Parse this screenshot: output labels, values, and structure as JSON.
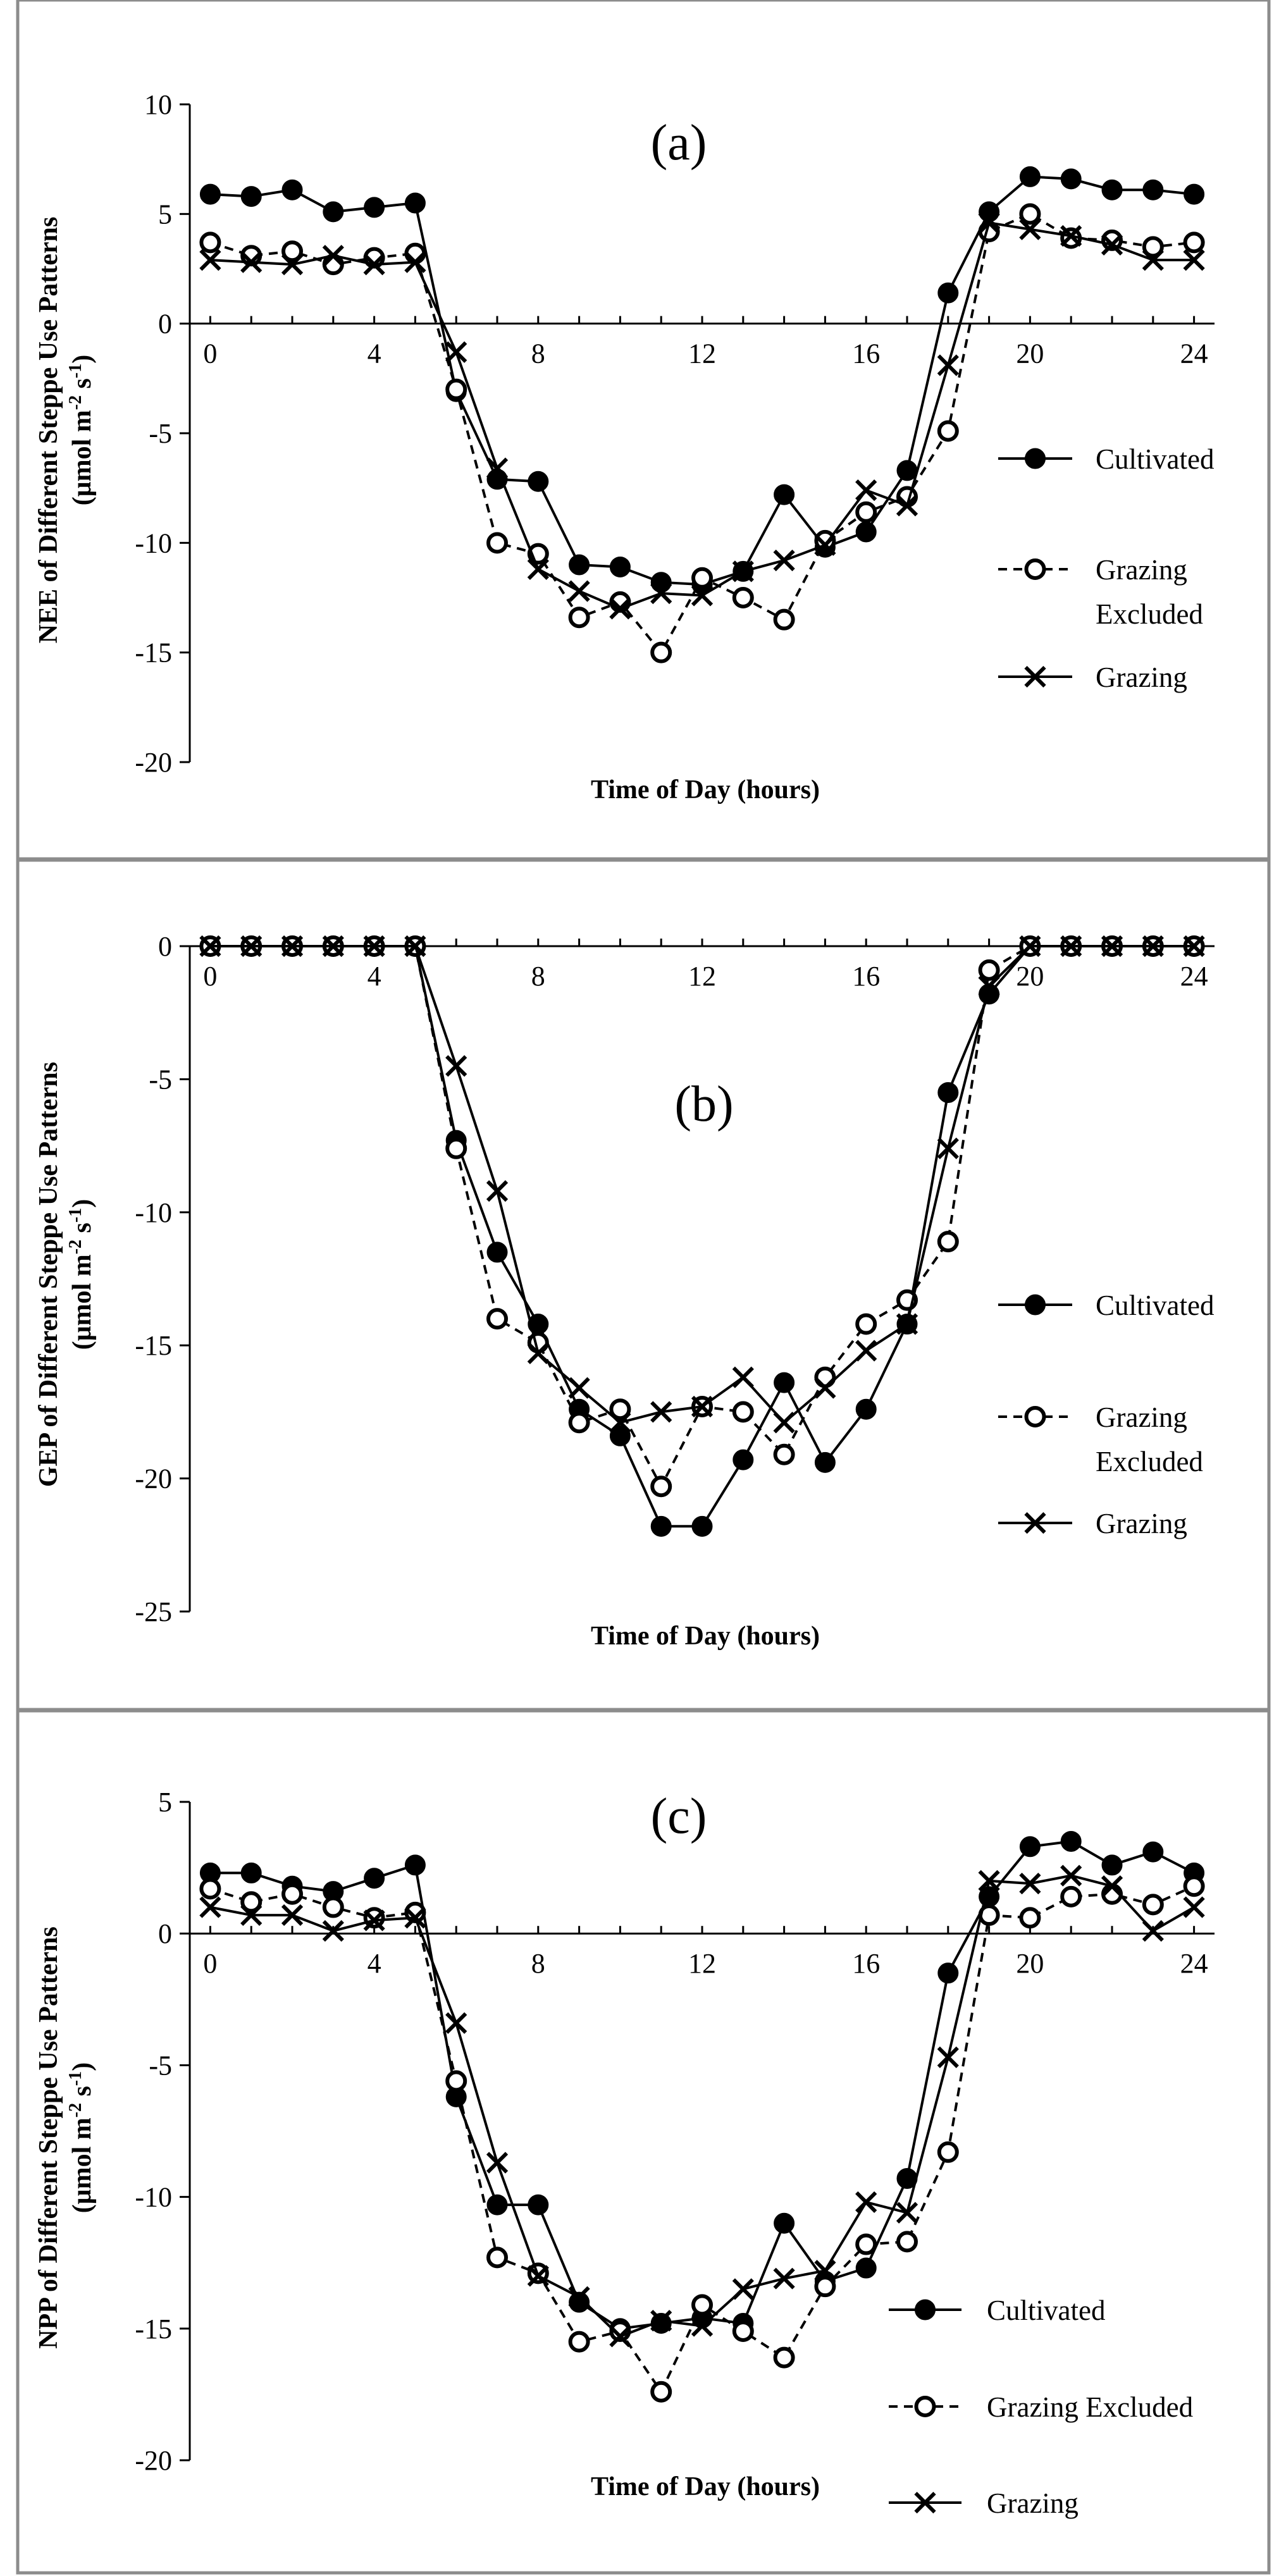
{
  "chart_data": [
    {
      "type": "line",
      "panel_label": "(a)",
      "ylabel_line1": "NEE  of  Different Steppe  Use Patterns",
      "ylabel_line2_base": "(μmol m",
      "ylabel_line2_sup1": "-2",
      "ylabel_line2_mid": " s",
      "ylabel_line2_sup2": "-1",
      "ylabel_line2_end": ")",
      "xlabel": "Time of Day  (hours)",
      "ylim": [
        -20,
        10
      ],
      "yticks": [
        "10",
        "5",
        "0",
        "-5",
        "-10",
        "-15",
        "-20"
      ],
      "xticks": [
        "0",
        "4",
        "8",
        "12",
        "16",
        "20",
        "24"
      ],
      "xlim": [
        -0.5,
        24.5
      ],
      "legend_position": "right",
      "x": [
        0,
        1,
        2,
        3,
        4,
        5,
        6,
        7,
        8,
        9,
        10,
        11,
        12,
        13,
        14,
        15,
        16,
        17,
        18,
        19,
        20,
        21,
        22,
        23,
        24
      ],
      "series": [
        {
          "name": "Cultivated",
          "marker": "filled-circle",
          "dashed": false,
          "values": [
            5.9,
            5.8,
            6.1,
            5.1,
            5.3,
            5.5,
            -3.1,
            -7.1,
            -7.2,
            -11.0,
            -11.1,
            -11.8,
            -11.9,
            -11.3,
            -7.8,
            -10.2,
            -9.5,
            -6.7,
            1.4,
            5.1,
            6.7,
            6.6,
            6.1,
            6.1,
            5.9
          ]
        },
        {
          "name": "Grazing Excluded",
          "legend_lines": [
            "Grazing",
            "Excluded"
          ],
          "marker": "open-circle",
          "dashed": true,
          "values": [
            3.7,
            3.1,
            3.3,
            2.7,
            3.0,
            3.2,
            -3.0,
            -10.0,
            -10.5,
            -13.4,
            -12.7,
            -15.0,
            -11.6,
            -12.5,
            -13.5,
            -9.9,
            -8.6,
            -7.9,
            -4.9,
            4.2,
            5.0,
            3.9,
            3.8,
            3.5,
            3.7
          ]
        },
        {
          "name": "Grazing",
          "marker": "x",
          "dashed": false,
          "values": [
            2.9,
            2.8,
            2.7,
            3.1,
            2.7,
            2.8,
            -1.3,
            -6.6,
            -11.2,
            -12.2,
            -13.0,
            -12.3,
            -12.4,
            -11.3,
            -10.8,
            -10.1,
            -7.6,
            -8.3,
            -1.9,
            4.6,
            4.3,
            4.0,
            3.6,
            2.9,
            2.9
          ]
        }
      ]
    },
    {
      "type": "line",
      "panel_label": "(b)",
      "ylabel_line1": "GEP  of  Different Steppe  Use Patterns",
      "ylabel_line2_base": "(μmol m",
      "ylabel_line2_sup1": "-2",
      "ylabel_line2_mid": " s",
      "ylabel_line2_sup2": "-1",
      "ylabel_line2_end": ")",
      "xlabel": "Time of Day  (hours)",
      "ylim": [
        -25,
        0
      ],
      "yticks": [
        "0",
        "-5",
        "-10",
        "-15",
        "-20",
        "-25"
      ],
      "xticks": [
        "0",
        "4",
        "8",
        "12",
        "16",
        "20",
        "24"
      ],
      "xlim": [
        -0.5,
        24.5
      ],
      "legend_position": "right",
      "x": [
        0,
        1,
        2,
        3,
        4,
        5,
        6,
        7,
        8,
        9,
        10,
        11,
        12,
        13,
        14,
        15,
        16,
        17,
        18,
        19,
        20,
        21,
        22,
        23,
        24
      ],
      "series": [
        {
          "name": "Cultivated",
          "marker": "filled-circle",
          "dashed": false,
          "values": [
            0,
            0,
            0,
            0,
            0,
            0,
            -7.3,
            -11.5,
            -14.2,
            -17.4,
            -18.4,
            -21.8,
            -21.8,
            -19.3,
            -16.4,
            -19.4,
            -17.4,
            -14.2,
            -5.5,
            -1.8,
            0,
            0,
            0,
            0,
            0
          ]
        },
        {
          "name": "Grazing Excluded",
          "legend_lines": [
            "Grazing",
            "Excluded"
          ],
          "marker": "open-circle",
          "dashed": true,
          "values": [
            0,
            0,
            0,
            0,
            0,
            0,
            -7.6,
            -14.0,
            -14.9,
            -17.9,
            -17.4,
            -20.3,
            -17.3,
            -17.5,
            -19.1,
            -16.2,
            -14.2,
            -13.3,
            -11.1,
            -0.9,
            0,
            0,
            0,
            0,
            0
          ]
        },
        {
          "name": "Grazing",
          "marker": "x",
          "dashed": false,
          "values": [
            0,
            0,
            0,
            0,
            0,
            0,
            -4.5,
            -9.2,
            -15.3,
            -16.6,
            -17.9,
            -17.5,
            -17.3,
            -16.2,
            -17.9,
            -16.6,
            -15.2,
            -14.2,
            -7.6,
            -1.5,
            0,
            0,
            0,
            0,
            0
          ]
        }
      ]
    },
    {
      "type": "line",
      "panel_label": "(c)",
      "ylabel_line1": "NPP  of  Different Steppe  Use Patterns",
      "ylabel_line2_base": "(μmol m",
      "ylabel_line2_sup1": "-2",
      "ylabel_line2_mid": " s",
      "ylabel_line2_sup2": "-1",
      "ylabel_line2_end": ")",
      "xlabel": "Time of Day  (hours)",
      "ylim": [
        -20,
        5
      ],
      "yticks": [
        "5",
        "0",
        "-5",
        "-10",
        "-15",
        "-20"
      ],
      "xticks": [
        "0",
        "4",
        "8",
        "12",
        "16",
        "20",
        "24"
      ],
      "xlim": [
        -0.5,
        24.5
      ],
      "legend_position": "bottom-right",
      "x": [
        0,
        1,
        2,
        3,
        4,
        5,
        6,
        7,
        8,
        9,
        10,
        11,
        12,
        13,
        14,
        15,
        16,
        17,
        18,
        19,
        20,
        21,
        22,
        23,
        24
      ],
      "series": [
        {
          "name": "Cultivated",
          "marker": "filled-circle",
          "dashed": false,
          "values": [
            2.3,
            2.3,
            1.8,
            1.6,
            2.1,
            2.6,
            -6.2,
            -10.3,
            -10.3,
            -14.0,
            -15.0,
            -14.8,
            -14.6,
            -14.8,
            -11.0,
            -13.2,
            -12.7,
            -9.3,
            -1.5,
            1.4,
            3.3,
            3.5,
            2.6,
            3.1,
            2.3
          ]
        },
        {
          "name": "Grazing Excluded",
          "legend_lines": [
            "Grazing Excluded"
          ],
          "marker": "open-circle",
          "dashed": true,
          "values": [
            1.7,
            1.2,
            1.5,
            1.0,
            0.6,
            0.8,
            -5.6,
            -12.3,
            -12.9,
            -15.5,
            -15.1,
            -17.4,
            -14.1,
            -15.1,
            -16.1,
            -13.4,
            -11.8,
            -11.7,
            -8.3,
            0.7,
            0.6,
            1.4,
            1.5,
            1.1,
            1.8
          ]
        },
        {
          "name": "Grazing",
          "marker": "x",
          "dashed": false,
          "values": [
            1.0,
            0.7,
            0.7,
            0.1,
            0.5,
            0.6,
            -3.4,
            -8.7,
            -13.0,
            -13.8,
            -15.3,
            -14.7,
            -14.9,
            -13.5,
            -13.1,
            -12.8,
            -10.2,
            -10.6,
            -4.7,
            2.0,
            1.9,
            2.2,
            1.8,
            0.1,
            1.0
          ]
        }
      ]
    }
  ]
}
